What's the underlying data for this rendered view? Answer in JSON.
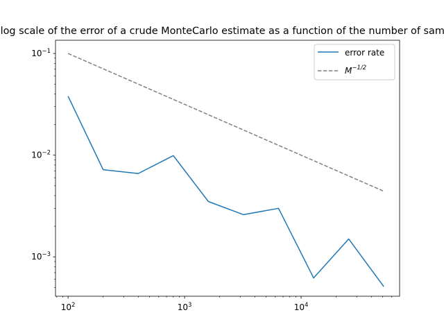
{
  "chart_data": {
    "type": "line",
    "title": "Log-log scale of the error of a crude MonteCarlo estimate as a function of the number of samples",
    "xlabel": "",
    "ylabel": "",
    "xscale": "log",
    "yscale": "log",
    "xlim": [
      78,
      70000
    ],
    "ylim": [
      0.00041,
      0.135
    ],
    "grid": false,
    "legend_position": "top-right",
    "x_ticks": [
      {
        "value": 100,
        "mantissa": "10",
        "exp": "2"
      },
      {
        "value": 1000,
        "mantissa": "10",
        "exp": "3"
      },
      {
        "value": 10000,
        "mantissa": "10",
        "exp": "4"
      }
    ],
    "y_ticks": [
      {
        "value": 0.001,
        "mantissa": "10",
        "exp": "−3"
      },
      {
        "value": 0.01,
        "mantissa": "10",
        "exp": "−2"
      },
      {
        "value": 0.1,
        "mantissa": "10",
        "exp": "−1"
      }
    ],
    "series": [
      {
        "name": "error rate",
        "color": "#1f77b4",
        "style": "solid",
        "x": [
          100,
          200,
          400,
          800,
          1600,
          3200,
          6400,
          12800,
          25600,
          51200
        ],
        "y": [
          0.038,
          0.0072,
          0.0066,
          0.0099,
          0.0035,
          0.0026,
          0.003,
          0.00062,
          0.0015,
          0.00051
        ]
      },
      {
        "name": "M^{-1/2}",
        "color": "#808080",
        "style": "dashed",
        "x": [
          100,
          200,
          400,
          800,
          1600,
          3200,
          6400,
          12800,
          25600,
          51200
        ],
        "y": [
          0.1,
          0.070711,
          0.05,
          0.035355,
          0.025,
          0.017678,
          0.0125,
          0.0088388,
          0.00625,
          0.0044194
        ]
      }
    ],
    "legend": {
      "entry1_label": "error rate",
      "entry2_base": "M",
      "entry2_exp": "−1/2"
    }
  }
}
